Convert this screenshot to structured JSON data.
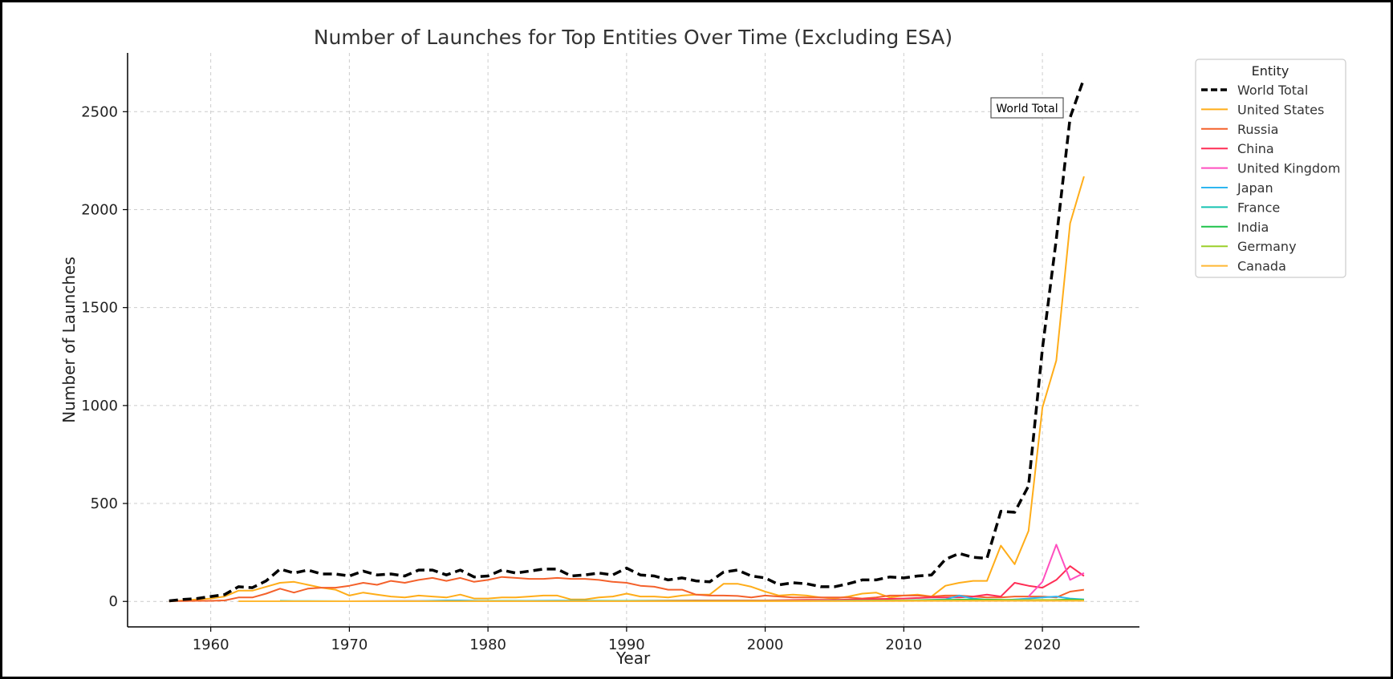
{
  "chart_data": {
    "type": "line",
    "title": "Number of Launches for Top Entities Over Time (Excluding ESA)",
    "xlabel": "Year",
    "ylabel": "Number of Launches",
    "xlim": [
      1954,
      2027
    ],
    "ylim": [
      -130,
      2800
    ],
    "x_ticks": [
      1960,
      1970,
      1980,
      1990,
      2000,
      2010,
      2020
    ],
    "y_ticks": [
      0,
      500,
      1000,
      1500,
      2000,
      2500
    ],
    "grid": true,
    "legend": {
      "title": "Entity",
      "position": "top-right-outside"
    },
    "annotations": [
      {
        "text": "World Total",
        "x": 2018,
        "y": 2510
      }
    ],
    "series": [
      {
        "name": "World Total",
        "color": "#000000",
        "dashed": true,
        "x": [
          1957,
          1958,
          1959,
          1960,
          1961,
          1962,
          1963,
          1964,
          1965,
          1966,
          1967,
          1968,
          1969,
          1970,
          1971,
          1972,
          1973,
          1974,
          1975,
          1976,
          1977,
          1978,
          1979,
          1980,
          1981,
          1982,
          1983,
          1984,
          1985,
          1986,
          1987,
          1988,
          1989,
          1990,
          1991,
          1992,
          1993,
          1994,
          1995,
          1996,
          1997,
          1998,
          1999,
          2000,
          2001,
          2002,
          2003,
          2004,
          2005,
          2006,
          2007,
          2008,
          2009,
          2010,
          2011,
          2012,
          2013,
          2014,
          2015,
          2016,
          2017,
          2018,
          2019,
          2020,
          2021,
          2022,
          2023
        ],
        "y": [
          3,
          10,
          15,
          25,
          35,
          75,
          70,
          105,
          165,
          145,
          160,
          140,
          140,
          130,
          155,
          135,
          140,
          130,
          160,
          160,
          135,
          160,
          125,
          130,
          160,
          145,
          155,
          165,
          165,
          130,
          135,
          145,
          135,
          170,
          135,
          130,
          110,
          120,
          105,
          100,
          150,
          160,
          130,
          120,
          85,
          95,
          90,
          75,
          75,
          90,
          110,
          110,
          125,
          120,
          130,
          135,
          215,
          245,
          225,
          220,
          460,
          455,
          590,
          1290,
          1850,
          2470,
          2670
        ]
      },
      {
        "name": "United States",
        "color": "#ffad19",
        "x": [
          1957,
          1958,
          1959,
          1960,
          1961,
          1962,
          1963,
          1964,
          1965,
          1966,
          1967,
          1968,
          1969,
          1970,
          1971,
          1972,
          1973,
          1974,
          1975,
          1976,
          1977,
          1978,
          1979,
          1980,
          1981,
          1982,
          1983,
          1984,
          1985,
          1986,
          1987,
          1988,
          1989,
          1990,
          1991,
          1992,
          1993,
          1994,
          1995,
          1996,
          1997,
          1998,
          1999,
          2000,
          2001,
          2002,
          2003,
          2004,
          2005,
          2006,
          2007,
          2008,
          2009,
          2010,
          2011,
          2012,
          2013,
          2014,
          2015,
          2016,
          2017,
          2018,
          2019,
          2020,
          2021,
          2022,
          2023
        ],
        "y": [
          0,
          5,
          10,
          15,
          25,
          55,
          55,
          75,
          95,
          100,
          85,
          70,
          60,
          30,
          45,
          35,
          25,
          20,
          30,
          25,
          20,
          35,
          15,
          15,
          20,
          20,
          25,
          30,
          30,
          10,
          10,
          20,
          25,
          40,
          25,
          25,
          20,
          30,
          35,
          35,
          90,
          90,
          75,
          50,
          30,
          35,
          30,
          20,
          15,
          25,
          40,
          45,
          20,
          30,
          35,
          25,
          80,
          95,
          105,
          105,
          285,
          190,
          360,
          990,
          1230,
          1930,
          2170
        ]
      },
      {
        "name": "Russia",
        "color": "#f4612b",
        "x": [
          1957,
          1958,
          1959,
          1960,
          1961,
          1962,
          1963,
          1964,
          1965,
          1966,
          1967,
          1968,
          1969,
          1970,
          1971,
          1972,
          1973,
          1974,
          1975,
          1976,
          1977,
          1978,
          1979,
          1980,
          1981,
          1982,
          1983,
          1984,
          1985,
          1986,
          1987,
          1988,
          1989,
          1990,
          1991,
          1992,
          1993,
          1994,
          1995,
          1996,
          1997,
          1998,
          1999,
          2000,
          2001,
          2002,
          2003,
          2004,
          2005,
          2006,
          2007,
          2008,
          2009,
          2010,
          2011,
          2012,
          2013,
          2014,
          2015,
          2016,
          2017,
          2018,
          2019,
          2020,
          2021,
          2022,
          2023
        ],
        "y": [
          2,
          2,
          3,
          3,
          5,
          20,
          20,
          40,
          65,
          45,
          65,
          70,
          70,
          80,
          95,
          85,
          105,
          95,
          110,
          120,
          105,
          120,
          100,
          110,
          125,
          120,
          115,
          115,
          120,
          115,
          115,
          110,
          100,
          95,
          80,
          75,
          60,
          60,
          35,
          30,
          30,
          28,
          20,
          30,
          25,
          20,
          20,
          20,
          20,
          20,
          15,
          20,
          30,
          30,
          30,
          25,
          30,
          30,
          25,
          20,
          20,
          25,
          25,
          25,
          20,
          50,
          60
        ]
      },
      {
        "name": "China",
        "color": "#ff2d55",
        "x": [
          1970,
          1975,
          1980,
          1985,
          1990,
          1995,
          2000,
          2003,
          2005,
          2008,
          2010,
          2012,
          2014,
          2015,
          2016,
          2017,
          2018,
          2019,
          2020,
          2021,
          2022,
          2023
        ],
        "y": [
          1,
          2,
          1,
          2,
          3,
          5,
          5,
          8,
          8,
          12,
          15,
          20,
          20,
          25,
          35,
          25,
          95,
          80,
          70,
          110,
          180,
          130
        ]
      },
      {
        "name": "United Kingdom",
        "color": "#ff4fbf",
        "x": [
          2019,
          2020,
          2021,
          2022,
          2023
        ],
        "y": [
          25,
          100,
          290,
          110,
          145
        ]
      },
      {
        "name": "Japan",
        "color": "#2eb6f0",
        "x": [
          1970,
          1975,
          1977,
          1978,
          1980,
          1985,
          1990,
          1995,
          2000,
          2005,
          2010,
          2013,
          2014,
          2015,
          2016,
          2017,
          2018,
          2019,
          2020,
          2021,
          2022,
          2023
        ],
        "y": [
          1,
          2,
          5,
          5,
          2,
          4,
          3,
          3,
          2,
          4,
          5,
          10,
          30,
          15,
          8,
          5,
          10,
          15,
          20,
          25,
          15,
          10
        ]
      },
      {
        "name": "France",
        "color": "#17c3b2",
        "x": [
          1965,
          1966,
          1967,
          1970,
          1975,
          1980,
          1985,
          1990,
          1995,
          2000,
          2005,
          2010,
          2015,
          2020,
          2023
        ],
        "y": [
          3,
          2,
          2,
          1,
          1,
          2,
          2,
          3,
          3,
          3,
          3,
          4,
          5,
          5,
          5
        ]
      },
      {
        "name": "India",
        "color": "#1ec24a",
        "x": [
          1974,
          1976,
          1979,
          1980,
          1981,
          1983,
          1990,
          1995,
          2000,
          2005,
          2010,
          2015,
          2018,
          2020,
          2022,
          2023
        ],
        "y": [
          1,
          1,
          1,
          2,
          2,
          1,
          2,
          3,
          3,
          3,
          5,
          10,
          8,
          6,
          10,
          8
        ]
      },
      {
        "name": "Germany",
        "color": "#9ccf2b",
        "x": [
          1969,
          1970,
          1972,
          1974,
          1980,
          1990,
          2000,
          2005,
          2010,
          2015,
          2020,
          2023
        ],
        "y": [
          1,
          1,
          1,
          1,
          1,
          1,
          3,
          3,
          5,
          5,
          8,
          5
        ]
      },
      {
        "name": "Canada",
        "color": "#ffb833",
        "x": [
          1962,
          1965,
          1970,
          1971,
          1972,
          1973,
          1980,
          1990,
          2000,
          2010,
          2020,
          2023
        ],
        "y": [
          1,
          1,
          1,
          1,
          1,
          1,
          1,
          1,
          1,
          2,
          3,
          3
        ]
      }
    ]
  }
}
